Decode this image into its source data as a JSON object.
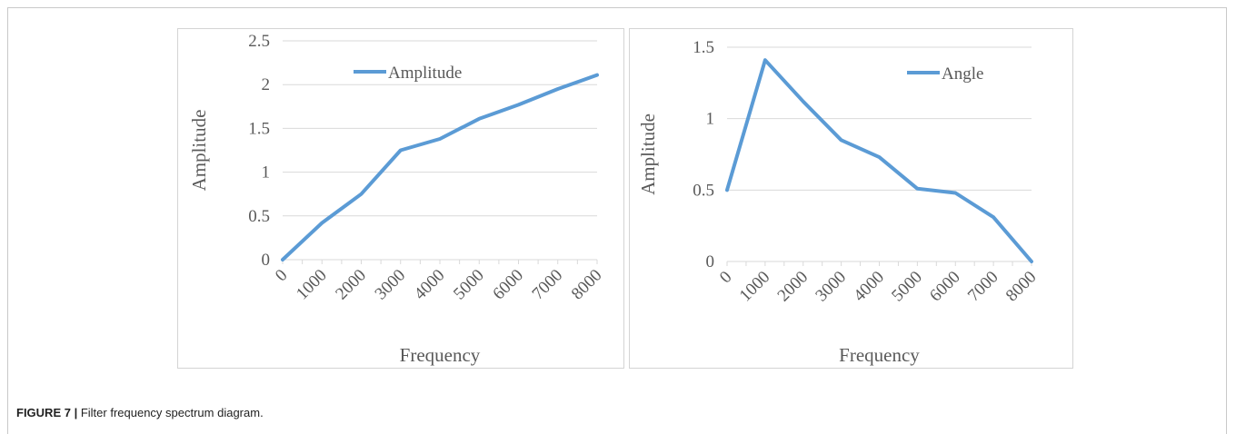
{
  "caption": {
    "label": "FIGURE 7 |",
    "text": "Filter frequency spectrum diagram."
  },
  "colors": {
    "series": "#5b9bd5",
    "grid": "#d9d9d9",
    "text": "#595959"
  },
  "chart_data": [
    {
      "type": "line",
      "xlabel": "Frequency",
      "ylabel": "Amplitude",
      "x": [
        0,
        1000,
        2000,
        3000,
        4000,
        5000,
        6000,
        7000,
        8000
      ],
      "x_tick_labels": [
        "0",
        "1000",
        "2000",
        "3000",
        "4000",
        "5000",
        "6000",
        "7000",
        "8000"
      ],
      "ylim": [
        0,
        2.5
      ],
      "y_tick_labels": [
        "0",
        "0.5",
        "1",
        "1.5",
        "2",
        "2.5"
      ],
      "grid": true,
      "legend_position": "top-center",
      "series": [
        {
          "name": "Amplitude",
          "values": [
            0,
            0.42,
            0.75,
            1.25,
            1.38,
            1.61,
            1.77,
            1.95,
            2.11
          ]
        }
      ]
    },
    {
      "type": "line",
      "xlabel": "Frequency",
      "ylabel": "Amplitude",
      "x": [
        0,
        1000,
        2000,
        3000,
        4000,
        5000,
        6000,
        7000,
        8000
      ],
      "x_tick_labels": [
        "0",
        "1000",
        "2000",
        "3000",
        "4000",
        "5000",
        "6000",
        "7000",
        "8000"
      ],
      "ylim": [
        0,
        1.5
      ],
      "y_tick_labels": [
        "0",
        "0.5",
        "1",
        "1.5"
      ],
      "grid": true,
      "legend_position": "top-right",
      "series": [
        {
          "name": "Angle",
          "values": [
            0.5,
            1.41,
            1.12,
            0.85,
            0.73,
            0.51,
            0.48,
            0.31,
            0
          ]
        }
      ]
    }
  ]
}
